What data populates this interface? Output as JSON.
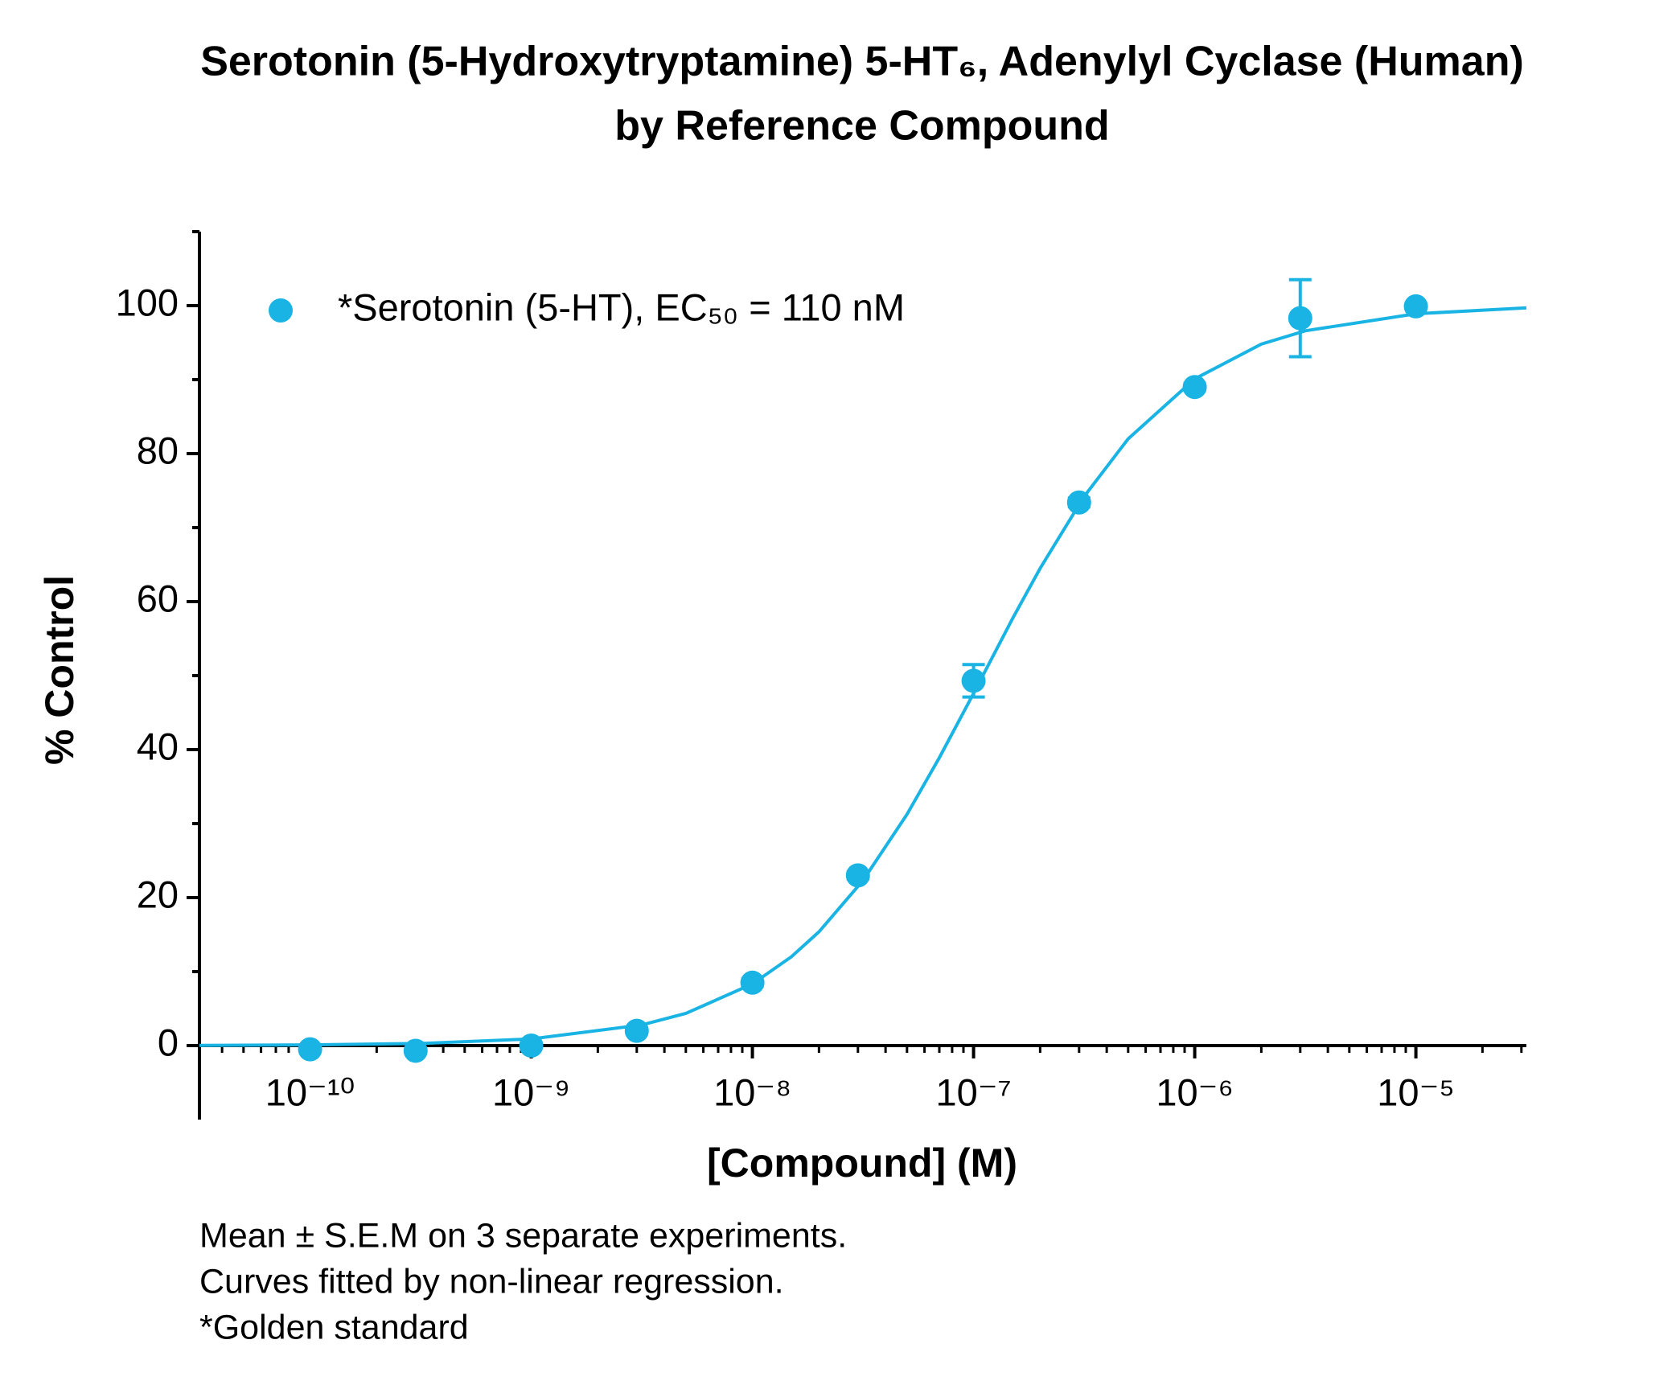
{
  "chart_data": {
    "type": "scatter",
    "title": [
      "Serotonin (5-Hydroxytryptamine) 5-HT₆, Adenylyl Cyclase (Human)",
      "by Reference Compound"
    ],
    "xlabel": "[Compound] (M)",
    "ylabel": "% Control",
    "xscale": "log",
    "xlim": [
      3.16e-11,
      3.16e-05
    ],
    "ylim": [
      -10,
      110
    ],
    "xticks": [
      {
        "value": 1e-10,
        "label": "10⁻¹⁰"
      },
      {
        "value": 1e-09,
        "label": "10⁻⁹"
      },
      {
        "value": 1e-08,
        "label": "10⁻⁸"
      },
      {
        "value": 1e-07,
        "label": "10⁻⁷"
      },
      {
        "value": 1e-06,
        "label": "10⁻⁶"
      },
      {
        "value": 1e-05,
        "label": "10⁻⁵"
      }
    ],
    "xminorticks": [
      4e-11,
      5e-11,
      6e-11,
      7e-11,
      8e-11,
      9e-11,
      2e-10,
      3e-10,
      4e-10,
      5e-10,
      6e-10,
      7e-10,
      8e-10,
      9e-10,
      2e-09,
      3e-09,
      4e-09,
      5e-09,
      6e-09,
      7e-09,
      8e-09,
      9e-09,
      2e-08,
      3e-08,
      4e-08,
      5e-08,
      6e-08,
      7e-08,
      8e-08,
      9e-08,
      2e-07,
      3e-07,
      4e-07,
      5e-07,
      6e-07,
      7e-07,
      8e-07,
      9e-07,
      2e-06,
      3e-06,
      4e-06,
      5e-06,
      6e-06,
      7e-06,
      8e-06,
      9e-06,
      2e-05,
      3e-05
    ],
    "yticks": [
      0,
      20,
      40,
      60,
      80,
      100
    ],
    "yminorticks": [
      10,
      30,
      50,
      70,
      90,
      110
    ],
    "legend": "upper left",
    "series": [
      {
        "name": "*Serotonin (5-HT), EC₅₀ = 110 nM",
        "color": "#1ab4e4",
        "x": [
          1e-10,
          3e-10,
          1e-09,
          3e-09,
          1e-08,
          3e-08,
          1e-07,
          3e-07,
          1e-06,
          3e-06,
          1e-05
        ],
        "values": [
          -0.5,
          -0.7,
          0,
          2,
          8.5,
          23,
          49.3,
          73.4,
          89,
          98.3,
          99.9
        ],
        "errors": [
          0.3,
          0.3,
          0.3,
          0.4,
          0.5,
          0.5,
          2.2,
          0.6,
          0.5,
          5.2,
          0.3
        ],
        "curve": {
          "x": [
            3.16e-11,
            1e-10,
            3.16e-10,
            1e-09,
            3.16e-09,
            5e-09,
            1e-08,
            1.5e-08,
            2e-08,
            3.16e-08,
            5e-08,
            7e-08,
            1e-07,
            1.5e-07,
            2e-07,
            3.16e-07,
            5e-07,
            1e-06,
            2e-06,
            3.16e-06,
            1e-05,
            3.16e-05
          ],
          "values": [
            0.03,
            0.09,
            0.29,
            0.9,
            2.79,
            4.35,
            8.33,
            12.0,
            15.38,
            22.3,
            31.25,
            38.9,
            47.6,
            57.7,
            64.5,
            74.2,
            82.0,
            90.1,
            94.8,
            96.6,
            98.9,
            99.7
          ]
        }
      }
    ],
    "notes": [
      "Mean ± S.E.M on 3 separate experiments.",
      "Curves fitted by non-linear regression.",
      "*Golden standard"
    ]
  }
}
